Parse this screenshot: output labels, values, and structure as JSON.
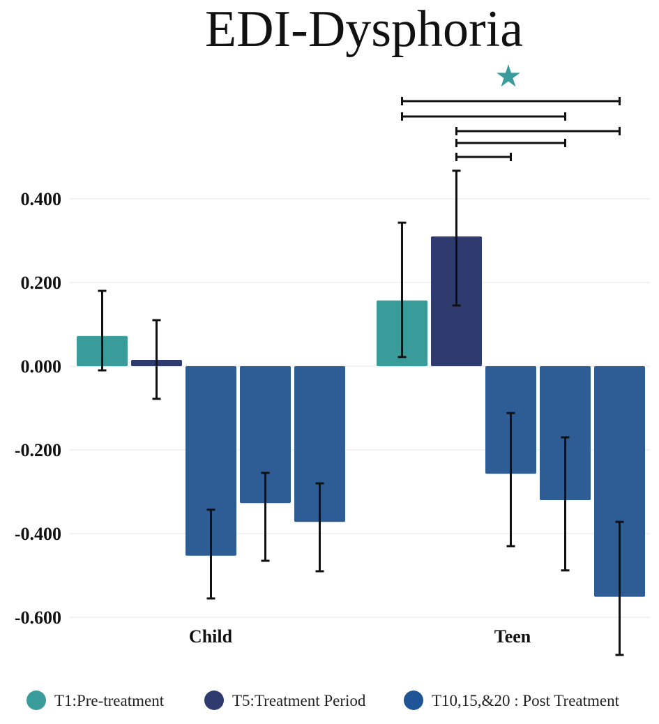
{
  "chart_data": {
    "type": "bar",
    "title": "EDI-Dysphoria",
    "xlabel": "",
    "ylabel": "",
    "ylim": [
      -0.6,
      0.4
    ],
    "yticks": [
      "0.400",
      "0.200",
      "0.000",
      "-0.200",
      "-0.400",
      "-0.600"
    ],
    "grid": true,
    "legend_position": "bottom",
    "categories": [
      "Child",
      "Teen"
    ],
    "series": [
      {
        "name": "T1:Pre-treatment",
        "color": "#3a9c9a",
        "values": [
          0.072,
          0.157
        ],
        "err_low": [
          -0.01,
          0.022
        ],
        "err_high": [
          0.18,
          0.343
        ]
      },
      {
        "name": "T5:Treatment Period",
        "color": "#2f3a6e",
        "values": [
          0.015,
          0.31
        ],
        "err_low": [
          -0.078,
          0.145
        ],
        "err_high": [
          0.11,
          0.467
        ]
      },
      {
        "name": "T10",
        "color": "#2e5d96",
        "values": [
          -0.453,
          -0.257
        ],
        "err_low": [
          -0.555,
          -0.43
        ],
        "err_high": [
          -0.343,
          -0.112
        ]
      },
      {
        "name": "T15",
        "color": "#2e5d96",
        "values": [
          -0.327,
          -0.32
        ],
        "err_low": [
          -0.465,
          -0.488
        ],
        "err_high": [
          -0.255,
          -0.17
        ]
      },
      {
        "name": "T20",
        "color": "#2e5d96",
        "values": [
          -0.372,
          -0.551
        ],
        "err_low": [
          -0.49,
          -0.69
        ],
        "err_high": [
          -0.28,
          -0.372
        ]
      }
    ],
    "significance": [
      {
        "category": "Teen",
        "from": 0,
        "to": 4
      },
      {
        "category": "Teen",
        "from": 0,
        "to": 3
      },
      {
        "category": "Teen",
        "from": 1,
        "to": 4
      },
      {
        "category": "Teen",
        "from": 1,
        "to": 3
      },
      {
        "category": "Teen",
        "from": 1,
        "to": 2
      }
    ],
    "annotations": [
      {
        "symbol": "★",
        "color": "#3a9c9a",
        "category": "Teen"
      }
    ]
  },
  "legend": {
    "items": [
      {
        "label": "T1:Pre-treatment",
        "color": "#3a9c9a"
      },
      {
        "label": "T5:Treatment Period",
        "color": "#2f3a6e"
      },
      {
        "label": "T10,15,&20 : Post Treatment",
        "color": "#1f5597"
      }
    ]
  }
}
